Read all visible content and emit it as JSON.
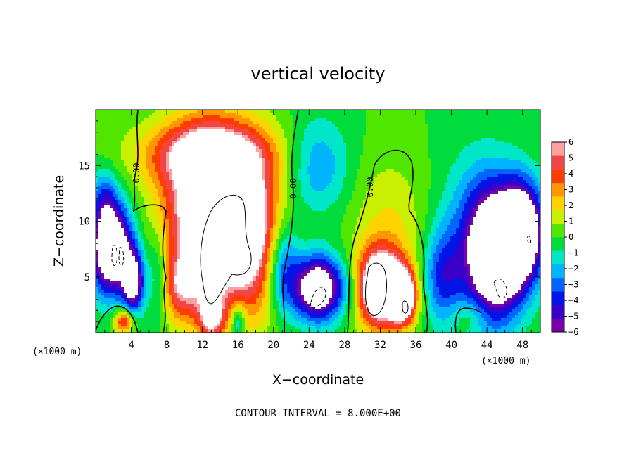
{
  "chart_data": {
    "type": "heatmap",
    "title": "vertical velocity",
    "xlabel": "X−coordinate",
    "ylabel": "Z−coordinate",
    "x_unit_left": "(×1000 m)",
    "x_unit_right": "(×1000 m)",
    "footnote": "CONTOUR INTERVAL = 8.000E+00",
    "xlim": [
      0,
      50
    ],
    "ylim": [
      0,
      20
    ],
    "x_ticks": [
      4,
      8,
      12,
      16,
      20,
      24,
      28,
      32,
      36,
      40,
      44,
      48
    ],
    "x_tick_labels": [
      "4",
      "8",
      "12",
      "16",
      "20",
      "24",
      "28",
      "32",
      "36",
      "40",
      "44",
      "48"
    ],
    "y_ticks": [
      5,
      10,
      15
    ],
    "y_tick_labels": [
      "5",
      "10",
      "15"
    ],
    "colorbar": {
      "levels": [
        -6,
        -5,
        -4,
        -3,
        -2,
        -1,
        0,
        1,
        2,
        3,
        4,
        5,
        6
      ],
      "labels": [
        "6",
        "5",
        "4",
        "3",
        "2",
        "1",
        "0",
        "−1",
        "−2",
        "−3",
        "−4",
        "−5",
        "−6"
      ],
      "colors": [
        "#7a00a8",
        "#3a00c8",
        "#0014e8",
        "#0064ff",
        "#00b4ff",
        "#00e6c8",
        "#00dc3c",
        "#50e600",
        "#c8f000",
        "#ffd200",
        "#ff9600",
        "#ff3c00",
        "#f04646",
        "#ffa0a0"
      ]
    },
    "contour_labels": [
      "0.00",
      "0.00",
      "0.00"
    ],
    "features": [
      {
        "kind": "updraft",
        "x": 12.5,
        "z": 10.5,
        "sx": 3.4,
        "sz": 5.5,
        "amp": 10
      },
      {
        "kind": "updraft",
        "x": 17.5,
        "z": 9.0,
        "sx": 2.6,
        "sz": 5.0,
        "amp": 7
      },
      {
        "kind": "updraft",
        "x": 12.5,
        "z": 16.0,
        "sx": 5.5,
        "sz": 2.0,
        "amp": 5
      },
      {
        "kind": "updraft",
        "x": 9.5,
        "z": 4.0,
        "sx": 1.6,
        "sz": 2.0,
        "amp": 4
      },
      {
        "kind": "updraft",
        "x": 13.0,
        "z": 1.5,
        "sx": 1.0,
        "sz": 1.5,
        "amp": 6
      },
      {
        "kind": "updraft",
        "x": 32.0,
        "z": 4.0,
        "sx": 2.0,
        "sz": 2.4,
        "amp": 12
      },
      {
        "kind": "updraft",
        "x": 34.6,
        "z": 3.2,
        "sx": 1.0,
        "sz": 1.6,
        "amp": 9
      },
      {
        "kind": "updraft",
        "x": 33.0,
        "z": 10.0,
        "sx": 3.0,
        "sz": 4.0,
        "amp": 2
      },
      {
        "kind": "updraft",
        "x": 3.2,
        "z": 1.0,
        "sx": 0.8,
        "sz": 0.8,
        "amp": 6
      },
      {
        "kind": "downdraft",
        "x": 1.8,
        "z": 7.5,
        "sx": 1.6,
        "sz": 2.8,
        "amp": -11
      },
      {
        "kind": "downdraft",
        "x": 4.2,
        "z": 4.5,
        "sx": 0.8,
        "sz": 2.0,
        "amp": -8
      },
      {
        "kind": "downdraft",
        "x": 25.0,
        "z": 4.0,
        "sx": 1.9,
        "sz": 2.0,
        "amp": -10
      },
      {
        "kind": "downdraft",
        "x": 45.0,
        "z": 7.0,
        "sx": 2.2,
        "sz": 4.0,
        "amp": -10
      },
      {
        "kind": "downdraft",
        "x": 48.0,
        "z": 9.0,
        "sx": 1.6,
        "sz": 3.0,
        "amp": -10
      },
      {
        "kind": "downdraft",
        "x": 43.0,
        "z": 9.0,
        "sx": 3.0,
        "sz": 5.0,
        "amp": -3
      },
      {
        "kind": "downdraft",
        "x": 25.0,
        "z": 15.0,
        "sx": 2.5,
        "sz": 3.0,
        "amp": -3
      },
      {
        "kind": "downdraft",
        "x": 21.0,
        "z": 6.0,
        "sx": 1.3,
        "sz": 3.0,
        "amp": -5
      },
      {
        "kind": "downdraft",
        "x": 39.0,
        "z": 5.0,
        "sx": 1.5,
        "sz": 3.0,
        "amp": -4
      },
      {
        "kind": "downdraft",
        "x": 1.0,
        "z": 12.0,
        "sx": 1.0,
        "sz": 2.0,
        "amp": -3
      },
      {
        "kind": "downdraft",
        "x": 7.0,
        "z": 5.0,
        "sx": 1.0,
        "sz": 3.0,
        "amp": -3
      },
      {
        "kind": "downdraft",
        "x": 16.0,
        "z": 1.0,
        "sx": 0.6,
        "sz": 1.2,
        "amp": -4
      },
      {
        "kind": "downdraft",
        "x": 29.0,
        "z": 4.0,
        "sx": 1.2,
        "sz": 2.0,
        "amp": -2
      },
      {
        "kind": "updraft",
        "x": 42.0,
        "z": 1.5,
        "sx": 1.5,
        "sz": 1.0,
        "amp": 1.5
      }
    ]
  }
}
